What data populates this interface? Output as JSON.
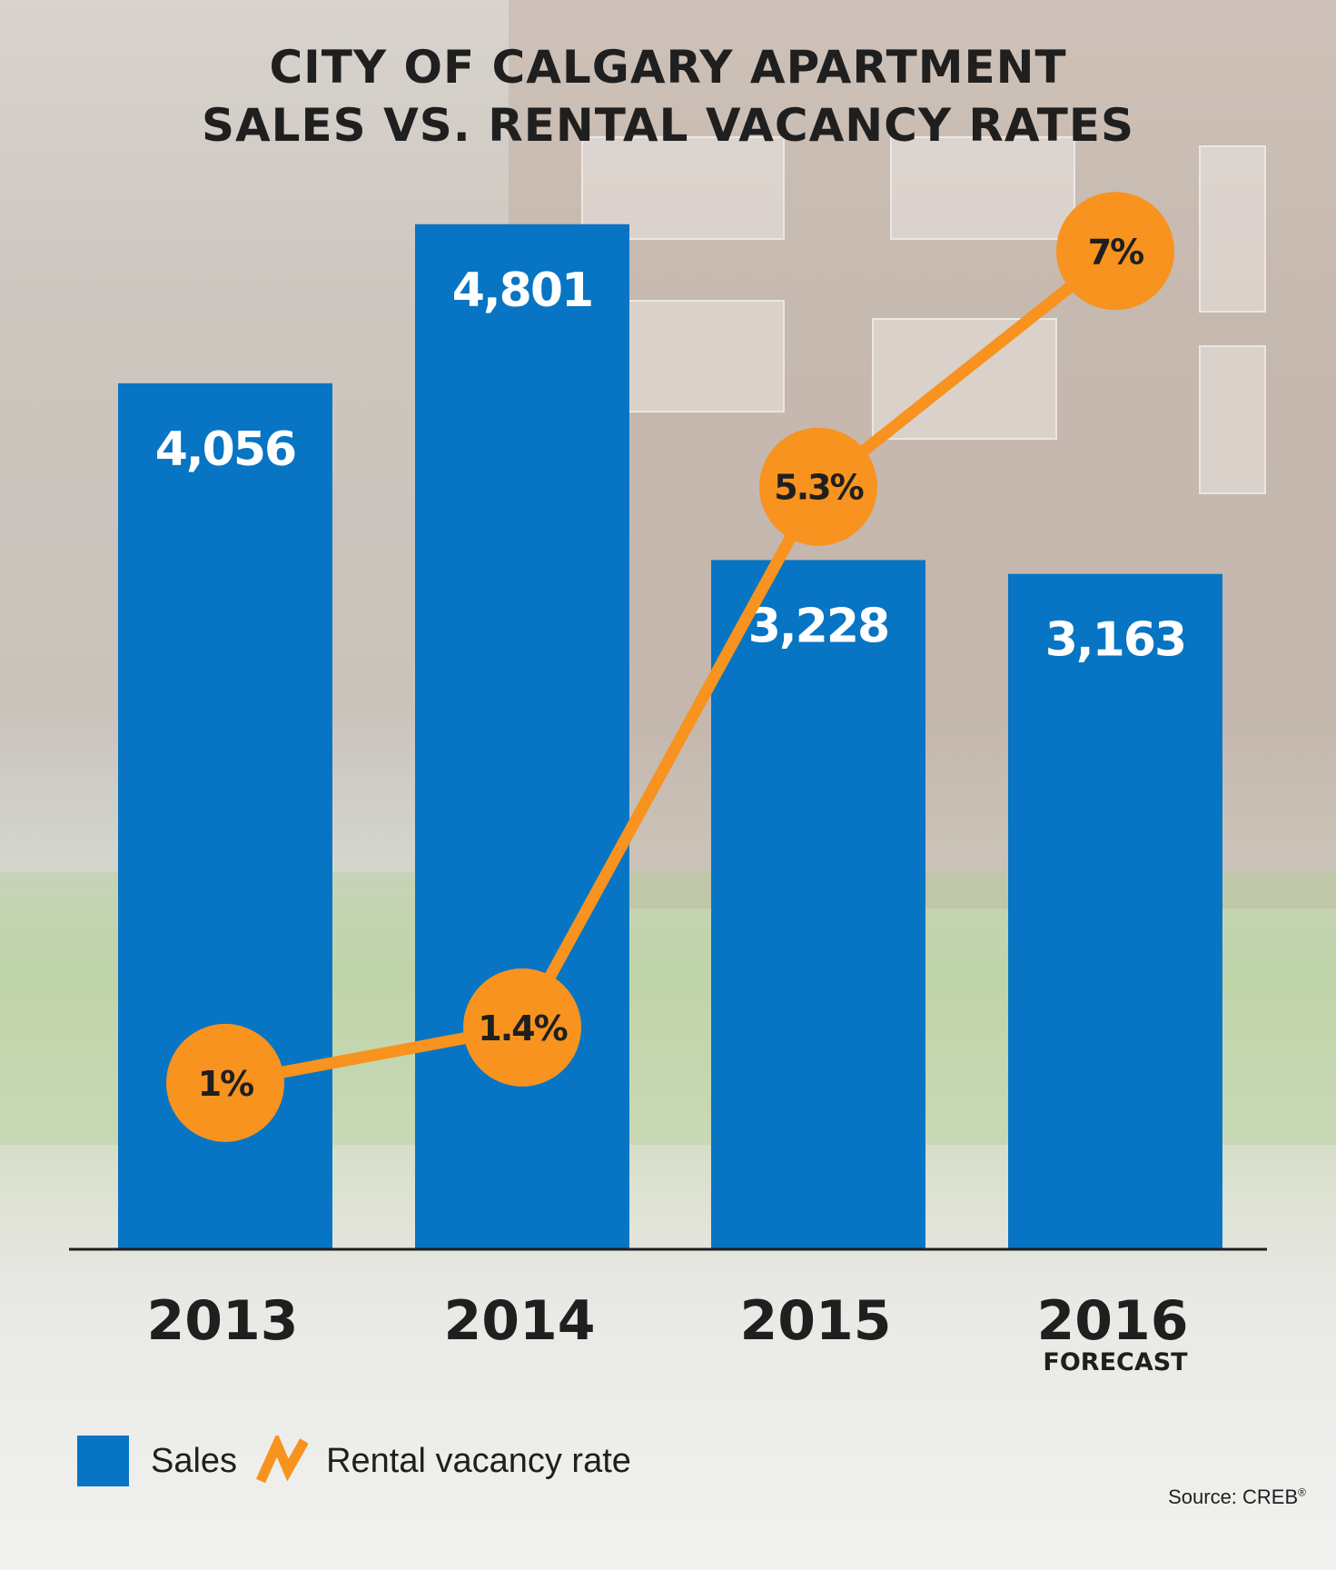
{
  "title_line1": "CITY OF CALGARY APARTMENT",
  "title_line2": "SALES VS. RENTAL VACANCY RATES",
  "legend": {
    "sales_label": "Sales",
    "vacancy_label": "Rental vacancy rate"
  },
  "source": "Source: CREB",
  "source_mark": "®",
  "colors": {
    "bar": "#0775c3",
    "line": "#f7931e",
    "axis": "#1f1f1f",
    "text": "#1f1f1f"
  },
  "chart_data": {
    "type": "bar",
    "title": "CITY OF CALGARY APARTMENT SALES VS. RENTAL VACANCY RATES",
    "categories": [
      "2013",
      "2014",
      "2015",
      "2016"
    ],
    "category_sublabels": [
      "",
      "",
      "",
      "FORECAST"
    ],
    "series": [
      {
        "name": "Sales",
        "type": "bar",
        "values": [
          4056,
          4801,
          3228,
          3163
        ],
        "labels": [
          "4,056",
          "4,801",
          "3,228",
          "3,163"
        ]
      },
      {
        "name": "Rental vacancy rate",
        "type": "line",
        "values": [
          1,
          1.4,
          5.3,
          7
        ],
        "labels": [
          "1%",
          "1.4%",
          "5.3%",
          "7%"
        ]
      }
    ],
    "bar_axis_range": [
      0,
      5000
    ],
    "line_axis_range": [
      -0.2,
      7.5
    ],
    "grid": false,
    "legend_position": "bottom-left"
  }
}
